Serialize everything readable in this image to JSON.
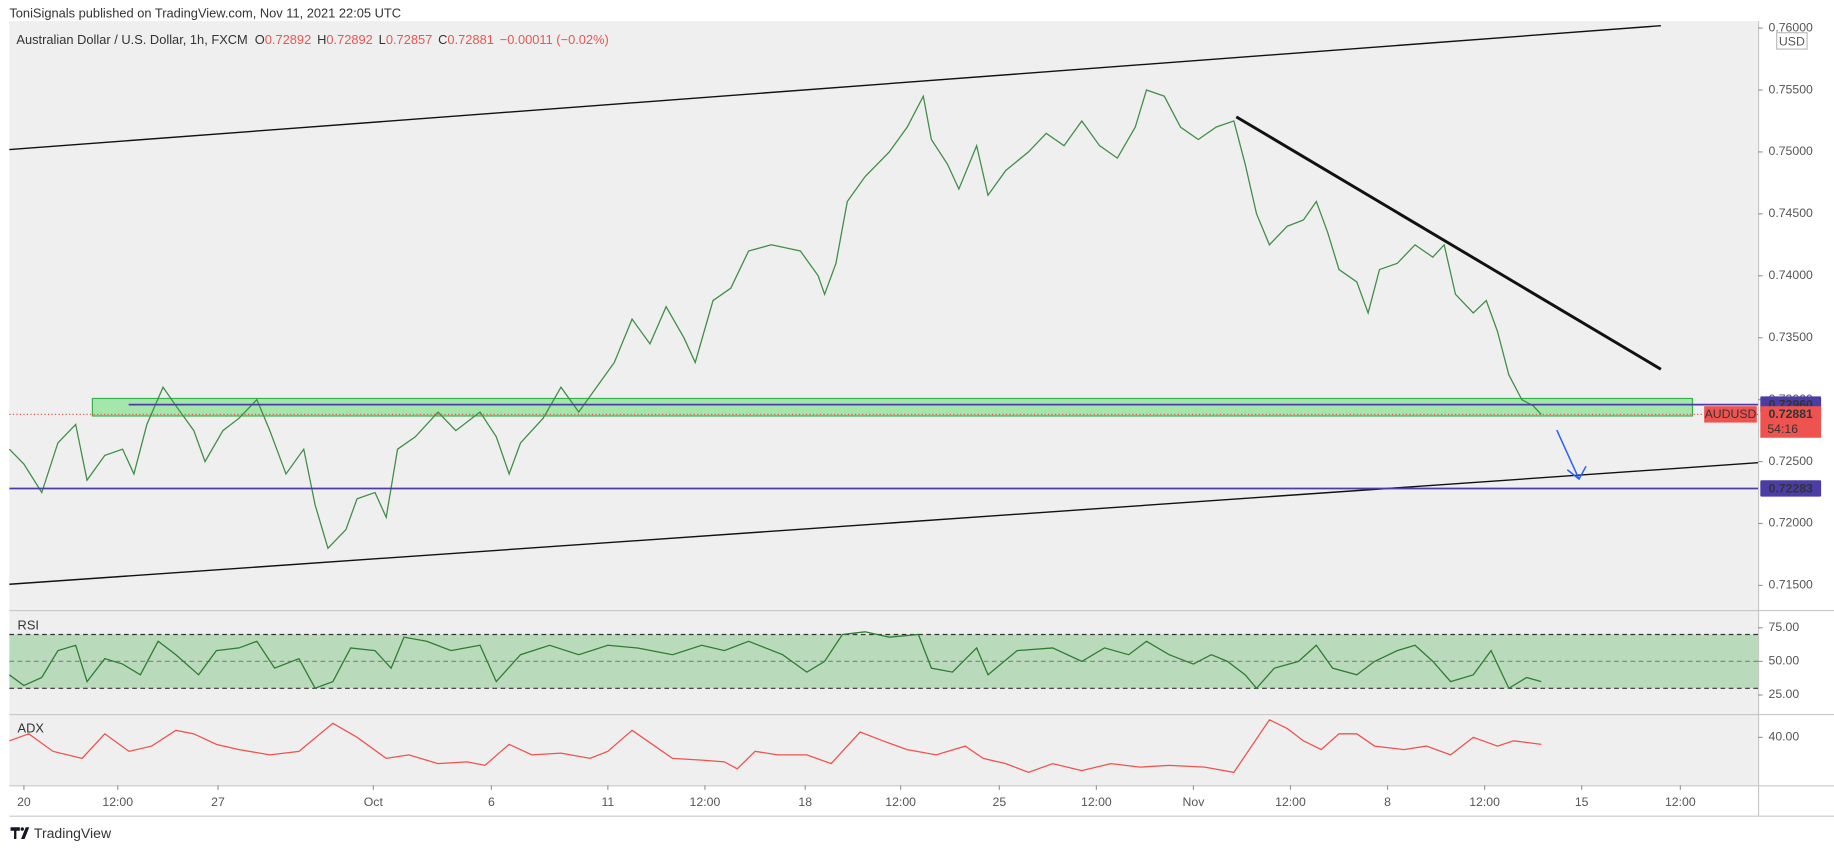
{
  "header": {
    "publisher": "ToniSignals published on TradingView.com, Nov 11, 2021 22:05 UTC"
  },
  "footer": {
    "brand": "TradingView"
  },
  "chart_data": [
    {
      "type": "line",
      "title": "Australian Dollar / U.S. Dollar, 1h, FXCM",
      "legend": {
        "open_label": "O",
        "open": 0.72892,
        "high_label": "H",
        "high": 0.72892,
        "low_label": "L",
        "low": 0.72857,
        "close_label": "C",
        "close": 0.72881,
        "change": "−0.00011 (−0.02%)"
      },
      "currency": "USD",
      "symbol": "AUDUSD",
      "last": 0.72881,
      "countdown": "54:16",
      "color": "#3f8f46",
      "last_color": "#ef5350",
      "levels": [
        {
          "value": 0.7296,
          "label": "0.72960",
          "color": "#4b3ca6"
        },
        {
          "value": 0.72283,
          "label": "0.72283",
          "color": "#4b3ca6"
        }
      ],
      "x": [
        0,
        9,
        20,
        30,
        41,
        48,
        59,
        70,
        77,
        85,
        95,
        103,
        114,
        121,
        132,
        142,
        153,
        161,
        171,
        182,
        189,
        197,
        208,
        215,
        226,
        233,
        240,
        251,
        265,
        276,
        291,
        301,
        309,
        316,
        330,
        341,
        352,
        363,
        374,
        385,
        396,
        406,
        417,
        424,
        435,
        446,
        457,
        471,
        489,
        500,
        504,
        511,
        518,
        529,
        544,
        555,
        565,
        570,
        580,
        587,
        598,
        605,
        616,
        630,
        641,
        652,
        663,
        674,
        685,
        696,
        703,
        714,
        724,
        735,
        746,
        757,
        764,
        771,
        779,
        790,
        800,
        808,
        815,
        822,
        833,
        840,
        847,
        858,
        869,
        880,
        887,
        894,
        905,
        913,
        920,
        927,
        935,
        942,
        947
      ],
      "values": [
        0.726,
        0.7248,
        0.7225,
        0.7265,
        0.728,
        0.7235,
        0.7255,
        0.726,
        0.724,
        0.728,
        0.731,
        0.7295,
        0.7275,
        0.725,
        0.7275,
        0.7285,
        0.73,
        0.7275,
        0.724,
        0.726,
        0.7215,
        0.718,
        0.7195,
        0.722,
        0.7225,
        0.7205,
        0.726,
        0.727,
        0.729,
        0.7275,
        0.729,
        0.727,
        0.724,
        0.7265,
        0.7285,
        0.731,
        0.729,
        0.731,
        0.733,
        0.7365,
        0.7345,
        0.7375,
        0.735,
        0.733,
        0.738,
        0.739,
        0.742,
        0.7425,
        0.742,
        0.74,
        0.7385,
        0.741,
        0.746,
        0.748,
        0.75,
        0.752,
        0.7545,
        0.751,
        0.749,
        0.747,
        0.7505,
        0.7465,
        0.7485,
        0.75,
        0.7515,
        0.7505,
        0.7525,
        0.7505,
        0.7495,
        0.752,
        0.755,
        0.7545,
        0.752,
        0.751,
        0.752,
        0.7525,
        0.749,
        0.745,
        0.7425,
        0.744,
        0.7445,
        0.746,
        0.7435,
        0.7405,
        0.7395,
        0.737,
        0.7405,
        0.741,
        0.7425,
        0.7415,
        0.7425,
        0.7385,
        0.737,
        0.738,
        0.7355,
        0.732,
        0.73,
        0.7295,
        0.7288
      ],
      "xlim": [
        0,
        1081
      ],
      "ylim": [
        0.71302,
        0.76057
      ],
      "yticks": [
        {
          "value": 0.715,
          "label": "0.71500"
        },
        {
          "value": 0.72,
          "label": "0.72000"
        },
        {
          "value": 0.725,
          "label": "0.72500"
        },
        {
          "value": 0.73,
          "label": "0.73000"
        },
        {
          "value": 0.735,
          "label": "0.73500"
        },
        {
          "value": 0.74,
          "label": "0.74000"
        },
        {
          "value": 0.745,
          "label": "0.74500"
        },
        {
          "value": 0.75,
          "label": "0.75000"
        },
        {
          "value": 0.755,
          "label": "0.75500"
        },
        {
          "value": 0.76,
          "label": "0.76000"
        }
      ],
      "grid": false
    },
    {
      "type": "line",
      "title": "RSI",
      "color": "#2e7d32",
      "band": [
        30,
        70
      ],
      "midline": 50,
      "x": [
        0,
        9,
        20,
        30,
        41,
        48,
        59,
        70,
        81,
        92,
        103,
        117,
        128,
        142,
        153,
        164,
        179,
        189,
        200,
        211,
        226,
        236,
        244,
        258,
        273,
        291,
        301,
        316,
        334,
        352,
        370,
        388,
        410,
        428,
        442,
        457,
        478,
        493,
        504,
        515,
        529,
        544,
        562,
        570,
        583,
        598,
        605,
        623,
        645,
        663,
        677,
        692,
        703,
        717,
        732,
        743,
        753,
        764,
        771,
        782,
        797,
        808,
        818,
        833,
        844,
        858,
        869,
        880,
        891,
        905,
        916,
        927,
        938,
        947
      ],
      "values": [
        40,
        32,
        38,
        58,
        62,
        35,
        52,
        48,
        40,
        65,
        55,
        40,
        58,
        60,
        65,
        45,
        52,
        30,
        35,
        60,
        58,
        45,
        68,
        65,
        58,
        62,
        35,
        55,
        62,
        55,
        62,
        60,
        55,
        62,
        58,
        65,
        55,
        42,
        50,
        70,
        72,
        68,
        70,
        45,
        42,
        60,
        40,
        58,
        60,
        50,
        60,
        55,
        65,
        55,
        48,
        55,
        50,
        40,
        30,
        45,
        50,
        62,
        45,
        40,
        50,
        58,
        62,
        50,
        35,
        40,
        58,
        30,
        38,
        35
      ],
      "xlim": [
        0,
        1081
      ],
      "ylim": [
        10.9,
        87.4
      ],
      "yticks": [
        {
          "value": 25,
          "label": "25.00"
        },
        {
          "value": 50,
          "label": "50.00"
        },
        {
          "value": 75,
          "label": "75.00"
        }
      ],
      "grid": false
    },
    {
      "type": "line",
      "title": "ADX",
      "color": "#ef5350",
      "x": [
        0,
        12,
        27,
        45,
        59,
        74,
        88,
        103,
        114,
        128,
        142,
        161,
        179,
        200,
        215,
        233,
        247,
        265,
        283,
        294,
        309,
        323,
        341,
        359,
        370,
        385,
        399,
        410,
        428,
        442,
        450,
        461,
        475,
        493,
        508,
        526,
        540,
        555,
        573,
        591,
        602,
        616,
        630,
        645,
        663,
        681,
        699,
        717,
        739,
        757,
        768,
        779,
        790,
        800,
        811,
        822,
        833,
        844,
        862,
        876,
        891,
        905,
        920,
        930,
        947
      ],
      "values": [
        38,
        42,
        32,
        28,
        42,
        32,
        35,
        44,
        42,
        36,
        33,
        30,
        32,
        48,
        40,
        28,
        30,
        25,
        26,
        24,
        36,
        30,
        31,
        28,
        32,
        44,
        35,
        28,
        27,
        26,
        22,
        32,
        30,
        30,
        25,
        43,
        38,
        33,
        30,
        35,
        28,
        25,
        20,
        25,
        21,
        25,
        23,
        24,
        23,
        20,
        35,
        50,
        45,
        38,
        33,
        42,
        42,
        35,
        33,
        35,
        30,
        40,
        35,
        38,
        36
      ],
      "xlim": [
        0,
        1081
      ],
      "ylim": [
        12.7,
        52.7
      ],
      "yticks": [
        {
          "value": 40,
          "label": "40.00"
        }
      ],
      "xticks": [
        {
          "value": 9,
          "label": "20"
        },
        {
          "value": 67,
          "label": "12:00"
        },
        {
          "value": 129,
          "label": "27"
        },
        {
          "value": 225,
          "label": "Oct"
        },
        {
          "value": 298,
          "label": "6"
        },
        {
          "value": 370,
          "label": "11"
        },
        {
          "value": 430,
          "label": "12:00"
        },
        {
          "value": 492,
          "label": "18"
        },
        {
          "value": 551,
          "label": "12:00"
        },
        {
          "value": 612,
          "label": "25"
        },
        {
          "value": 672,
          "label": "12:00"
        },
        {
          "value": 732,
          "label": "Nov"
        },
        {
          "value": 792,
          "label": "12:00"
        },
        {
          "value": 852,
          "label": "8"
        },
        {
          "value": 912,
          "label": "12:00"
        },
        {
          "value": 972,
          "label": "15"
        },
        {
          "value": 1033,
          "label": "12:00"
        }
      ],
      "grid": false
    }
  ]
}
